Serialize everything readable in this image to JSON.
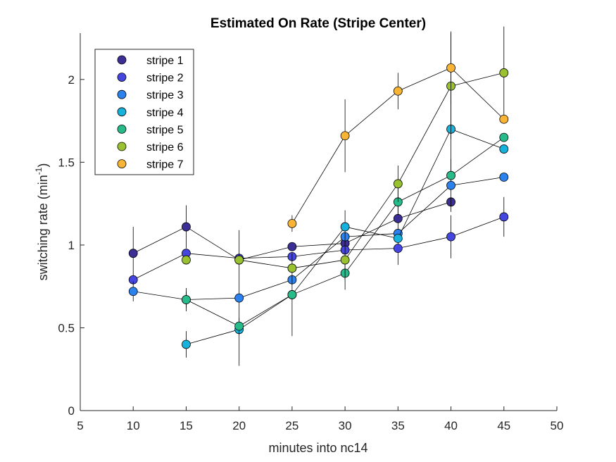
{
  "chart_data": {
    "type": "scatter",
    "title": "Estimated On Rate (Stripe Center)",
    "xlabel": "minutes into nc14",
    "ylabel_main": "switching rate (min",
    "ylabel_sup": "-1",
    "ylabel_tail": ")",
    "xlim": [
      5,
      50
    ],
    "ylim": [
      0,
      2.28
    ],
    "xticks": [
      5,
      10,
      15,
      20,
      25,
      30,
      35,
      40,
      45,
      50
    ],
    "yticks": [
      0,
      0.5,
      1,
      1.5,
      2
    ],
    "ytick_labels": [
      "0",
      "0.5",
      "1",
      "1.5",
      "2"
    ],
    "legend_position": "top-left",
    "marker": "circle",
    "line_color": "#000000",
    "series": [
      {
        "name": "stripe 1",
        "color": "#3b2f96",
        "x": [
          10,
          15,
          20,
          25,
          30,
          35,
          40
        ],
        "y": [
          0.95,
          1.11,
          0.91,
          0.99,
          1.01,
          1.16,
          1.26
        ],
        "err": [
          0.16,
          0.13,
          0,
          0,
          0,
          0.09,
          0
        ]
      },
      {
        "name": "stripe 2",
        "color": "#4545e0",
        "x": [
          10,
          15,
          20,
          25,
          30,
          35,
          40,
          45
        ],
        "y": [
          0.79,
          0.95,
          0.92,
          0.93,
          0.97,
          0.98,
          1.05,
          1.17
        ],
        "err": [
          0,
          0,
          0,
          0,
          0,
          0.1,
          0.13,
          0.12
        ]
      },
      {
        "name": "stripe 3",
        "color": "#2b82ef",
        "x": [
          10,
          15,
          20,
          25,
          30,
          35,
          40,
          45
        ],
        "y": [
          0.72,
          0.67,
          0.68,
          0.79,
          1.05,
          1.07,
          1.36,
          1.41
        ],
        "err": [
          0.06,
          0.05,
          0.41,
          0,
          0,
          0,
          0.16,
          0
        ]
      },
      {
        "name": "stripe 4",
        "color": "#17b2dc",
        "x": [
          15,
          20,
          25,
          30,
          35,
          40,
          45
        ],
        "y": [
          0.4,
          0.49,
          0.7,
          1.11,
          1.04,
          1.7,
          1.58
        ],
        "err": [
          0.08,
          0,
          0,
          0.1,
          0,
          0.3,
          0
        ]
      },
      {
        "name": "stripe 5",
        "color": "#27bb8c",
        "x": [
          15,
          20,
          25,
          30,
          35,
          40,
          45
        ],
        "y": [
          0.67,
          0.51,
          0.7,
          0.83,
          1.26,
          1.42,
          1.65
        ],
        "err": [
          0.07,
          0.05,
          0.25,
          0.1,
          0.08,
          0,
          0
        ]
      },
      {
        "name": "stripe 6",
        "color": "#9ac230",
        "x": [
          15,
          20,
          25,
          30,
          35,
          40,
          45
        ],
        "y": [
          0.91,
          0.91,
          0.86,
          0.91,
          1.37,
          1.96,
          2.04
        ],
        "err": [
          0,
          0,
          0,
          0.12,
          0.11,
          0.32,
          0.28
        ],
        "skip_line_at": [
          0
        ]
      },
      {
        "name": "stripe 7",
        "color": "#f8b434",
        "x": [
          25,
          30,
          35,
          40,
          45
        ],
        "y": [
          1.13,
          1.66,
          1.93,
          2.07,
          1.76
        ],
        "err": [
          0.05,
          0.22,
          0.11,
          0.22,
          0
        ]
      }
    ]
  }
}
